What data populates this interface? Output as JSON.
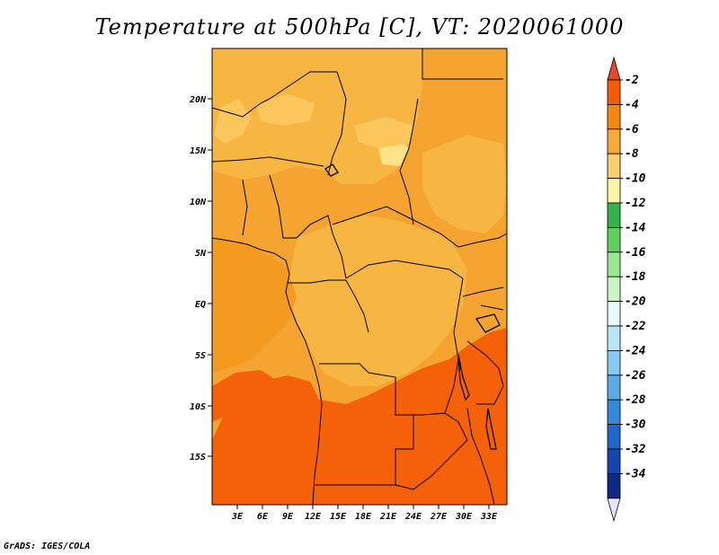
{
  "title": "Temperature at 500hPa [C], VT: 2020061000",
  "credit": "GrADS: IGES/COLA",
  "map": {
    "lat_labels": [
      "20N",
      "15N",
      "10N",
      "5N",
      "EQ",
      "5S",
      "10S",
      "15S"
    ],
    "lon_labels": [
      "3E",
      "6E",
      "9E",
      "12E",
      "15E",
      "18E",
      "21E",
      "24E",
      "27E",
      "30E",
      "33E"
    ]
  },
  "colorbar": {
    "labels": [
      "-2",
      "-4",
      "-6",
      "-8",
      "-10",
      "-12",
      "-14",
      "-16",
      "-18",
      "-20",
      "-22",
      "-24",
      "-26",
      "-28",
      "-30",
      "-32",
      "-34"
    ],
    "colors": [
      "#e8452a",
      "#f25c05",
      "#f5870e",
      "#f7a93a",
      "#fbcf6d",
      "#fdf5a6",
      "#2fb34a",
      "#5fd05f",
      "#98e891",
      "#cbf5c6",
      "#e8fbfc",
      "#b9e5fb",
      "#87c9f2",
      "#5aaae6",
      "#3489dd",
      "#1f67cc",
      "#1745b0",
      "#0f2a86",
      "#e6e3fb"
    ]
  },
  "colors": {
    "frame": "#000000",
    "land_base": "#f5a331",
    "warm_south": "#f46108",
    "cool_patch": "#fbc75c",
    "pale_patch": "#fde488"
  }
}
